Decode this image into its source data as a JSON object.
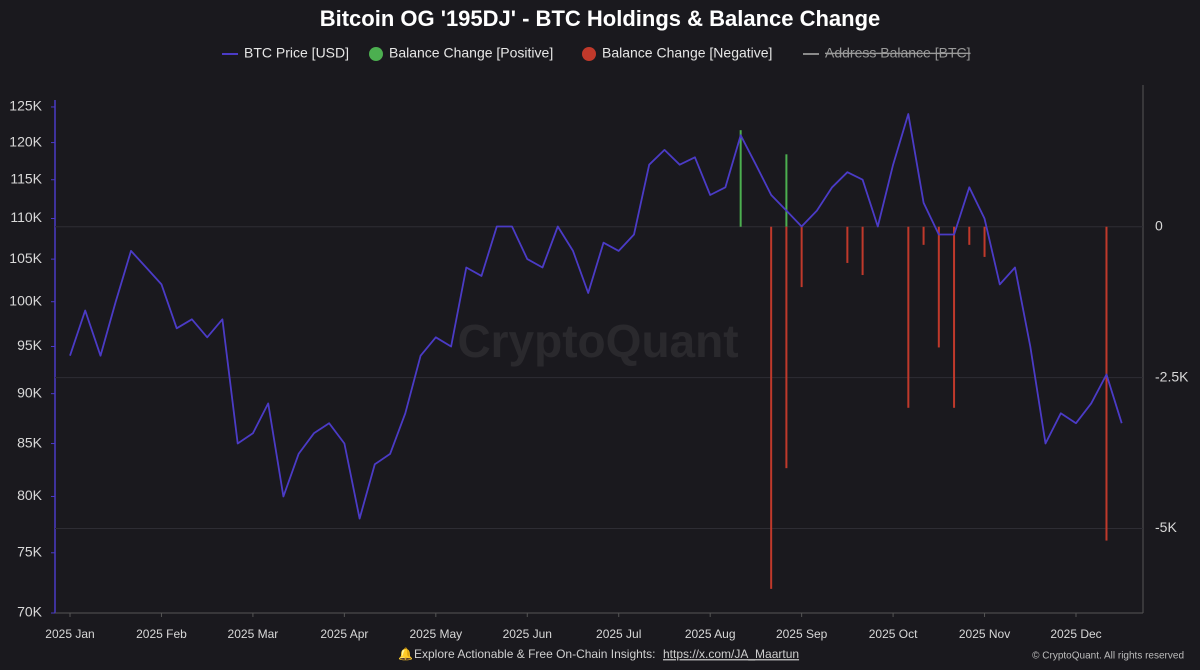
{
  "chart_data": {
    "type": "line_bar",
    "title": "Bitcoin OG '195DJ' - BTC Holdings & Balance Change",
    "watermark": "CryptoQuant",
    "footer": "Explore Actionable & Free On-Chain Insights:",
    "footer_link": "https://x.com/JA_Maartun",
    "copyright": "© CryptoQuant. All rights reserved",
    "log_scale": true,
    "categories": [
      "2025 Jan",
      null,
      null,
      null,
      null,
      null,
      "2025 Feb",
      null,
      null,
      null,
      null,
      null,
      "2025 Mar",
      null,
      null,
      null,
      null,
      null,
      "2025 Apr",
      null,
      null,
      null,
      null,
      null,
      "2025 May",
      null,
      null,
      null,
      null,
      null,
      "2025 Jun",
      null,
      null,
      null,
      null,
      null,
      "2025 Jul",
      null,
      null,
      null,
      null,
      null,
      "2025 Aug",
      null,
      null,
      null,
      null,
      null,
      "2025 Sep",
      null,
      null,
      null,
      null,
      null,
      "2025 Oct",
      null,
      null,
      null,
      null,
      null,
      "2025 Nov",
      null,
      null,
      null,
      null,
      null,
      "2025 Dec",
      null,
      null,
      null
    ],
    "series": [
      {
        "name": "BTC Price [USD]",
        "color": "#4b3bc6",
        "kind": "line",
        "values": [
          94000,
          99000,
          94000,
          100000,
          106000,
          104000,
          102000,
          97000,
          98000,
          96000,
          98000,
          85000,
          86000,
          89000,
          80000,
          84000,
          86000,
          87000,
          85000,
          78000,
          83000,
          84000,
          88000,
          94000,
          96000,
          95000,
          104000,
          103000,
          109000,
          109000,
          105000,
          104000,
          109000,
          106000,
          101000,
          107000,
          106000,
          108000,
          117000,
          119000,
          117000,
          118000,
          113000,
          114000,
          121000,
          117000,
          113000,
          111000,
          109000,
          111000,
          114000,
          116000,
          115000,
          109000,
          117000,
          124000,
          112000,
          108000,
          108000,
          114000,
          110000,
          102000,
          104000,
          95000,
          85000,
          88000,
          87000,
          89000,
          92000,
          87000
        ]
      },
      {
        "name": "Balance Change [Positive]",
        "color": "#4caf50",
        "kind": "bar",
        "axis": "y2",
        "values": [
          null,
          null,
          null,
          null,
          null,
          null,
          null,
          null,
          null,
          null,
          null,
          null,
          null,
          null,
          null,
          null,
          null,
          null,
          null,
          null,
          null,
          null,
          null,
          null,
          null,
          null,
          null,
          null,
          null,
          null,
          null,
          null,
          null,
          null,
          null,
          null,
          null,
          null,
          null,
          null,
          null,
          null,
          null,
          null,
          1600,
          null,
          null,
          1200,
          null,
          null,
          null,
          null,
          null,
          null,
          null,
          null,
          null,
          null,
          null,
          null,
          null,
          null,
          null,
          null,
          null,
          null,
          null,
          null,
          null,
          null
        ]
      },
      {
        "name": "Balance Change [Negative]",
        "color": "#c0392b",
        "kind": "bar",
        "axis": "y2",
        "values": [
          null,
          null,
          null,
          null,
          null,
          null,
          null,
          null,
          null,
          null,
          null,
          null,
          null,
          null,
          null,
          null,
          null,
          null,
          null,
          null,
          null,
          null,
          null,
          null,
          null,
          null,
          null,
          null,
          null,
          null,
          null,
          null,
          null,
          null,
          null,
          null,
          null,
          null,
          null,
          null,
          null,
          null,
          null,
          null,
          null,
          null,
          -6000,
          -4000,
          -1000,
          null,
          null,
          -600,
          -800,
          null,
          null,
          -3000,
          -300,
          -2000,
          -3000,
          -300,
          -500,
          null,
          null,
          null,
          null,
          null,
          null,
          null,
          -5200,
          null
        ]
      },
      {
        "name": "Address Balance [BTC]",
        "color": "#8a8a8a",
        "kind": "line",
        "axis": "y2",
        "hidden": true,
        "values": [
          null,
          null,
          null,
          null,
          null,
          null,
          null,
          null,
          null,
          null,
          null,
          null,
          null,
          null,
          null,
          null,
          null,
          null,
          null,
          null,
          null,
          null,
          null,
          null,
          null,
          null,
          null,
          null,
          null,
          null,
          null,
          null,
          null,
          null,
          null,
          null,
          null,
          null,
          null,
          null,
          null,
          null,
          null,
          null,
          null,
          null,
          null,
          null,
          null,
          null,
          null,
          null,
          null,
          null,
          null,
          null,
          null,
          null,
          null,
          null,
          null,
          null,
          null,
          null,
          null,
          null,
          null,
          null,
          null,
          null
        ]
      }
    ],
    "ylim": [
      70000,
      126000
    ],
    "yticks": [
      {
        "value": 70000,
        "label": "70K"
      },
      {
        "value": 75000,
        "label": "75K"
      },
      {
        "value": 80000,
        "label": "80K"
      },
      {
        "value": 85000,
        "label": "85K"
      },
      {
        "value": 90000,
        "label": "90K"
      },
      {
        "value": 95000,
        "label": "95K"
      },
      {
        "value": 100000,
        "label": "100K"
      },
      {
        "value": 105000,
        "label": "105K"
      },
      {
        "value": 110000,
        "label": "110K"
      },
      {
        "value": 115000,
        "label": "115K"
      },
      {
        "value": 120000,
        "label": "120K"
      },
      {
        "value": 125000,
        "label": "125K"
      }
    ],
    "y2lim": [
      -6400,
      2100
    ],
    "y2ticks": [
      0,
      {
        "value": -2500,
        "label": "-2.5K"
      },
      {
        "value": -5000,
        "label": "-5K"
      }
    ],
    "grid": true
  }
}
